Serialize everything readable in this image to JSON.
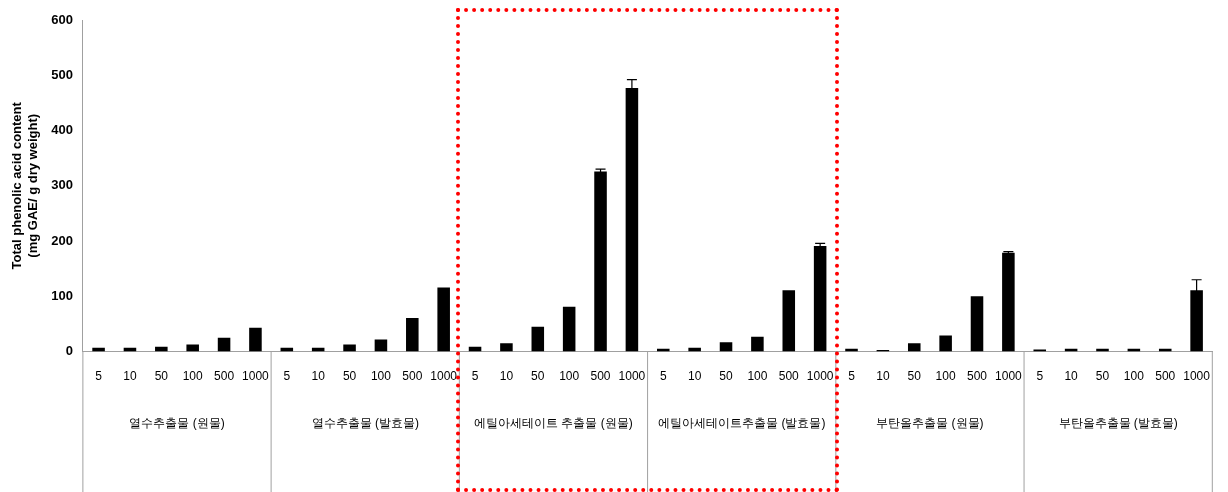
{
  "chart_data": {
    "type": "bar",
    "ylabel": "Total phenolic acid content\n(mg GAE/ g dry weight)",
    "categories": [
      "5",
      "10",
      "50",
      "100",
      "500",
      "1000",
      "5",
      "10",
      "50",
      "100",
      "500",
      "1000",
      "5",
      "10",
      "50",
      "100",
      "500",
      "1000",
      "5",
      "10",
      "50",
      "100",
      "500",
      "1000",
      "5",
      "10",
      "50",
      "100",
      "500",
      "1000",
      "5",
      "10",
      "50",
      "100",
      "500",
      "1000"
    ],
    "values": [
      7,
      7,
      9,
      13,
      25,
      43,
      7,
      7,
      13,
      22,
      61,
      116,
      9,
      15,
      45,
      81,
      326,
      477,
      5,
      7,
      17,
      27,
      111,
      191,
      5,
      3,
      15,
      29,
      100,
      179,
      4,
      5,
      5,
      5,
      5,
      111
    ],
    "errors": [
      null,
      null,
      null,
      null,
      null,
      null,
      null,
      null,
      null,
      null,
      null,
      null,
      null,
      null,
      null,
      null,
      4,
      15,
      null,
      null,
      null,
      null,
      null,
      5,
      null,
      null,
      null,
      null,
      null,
      2,
      null,
      null,
      null,
      null,
      null,
      19
    ],
    "color": "#000000",
    "ylim": [
      0,
      600
    ],
    "yticks": [
      0,
      100,
      200,
      300,
      400,
      500,
      600
    ],
    "annotations": [
      "열수추출물 (원물)",
      "열수추출물 (발효물)",
      "에틸아세테이트 추출물 (원물)",
      "에틸아세테이트추출물 (발효물)",
      "부탄올추출물 (원물)",
      "부탄올추출물 (발효물)"
    ],
    "grid": false,
    "legend": false
  }
}
